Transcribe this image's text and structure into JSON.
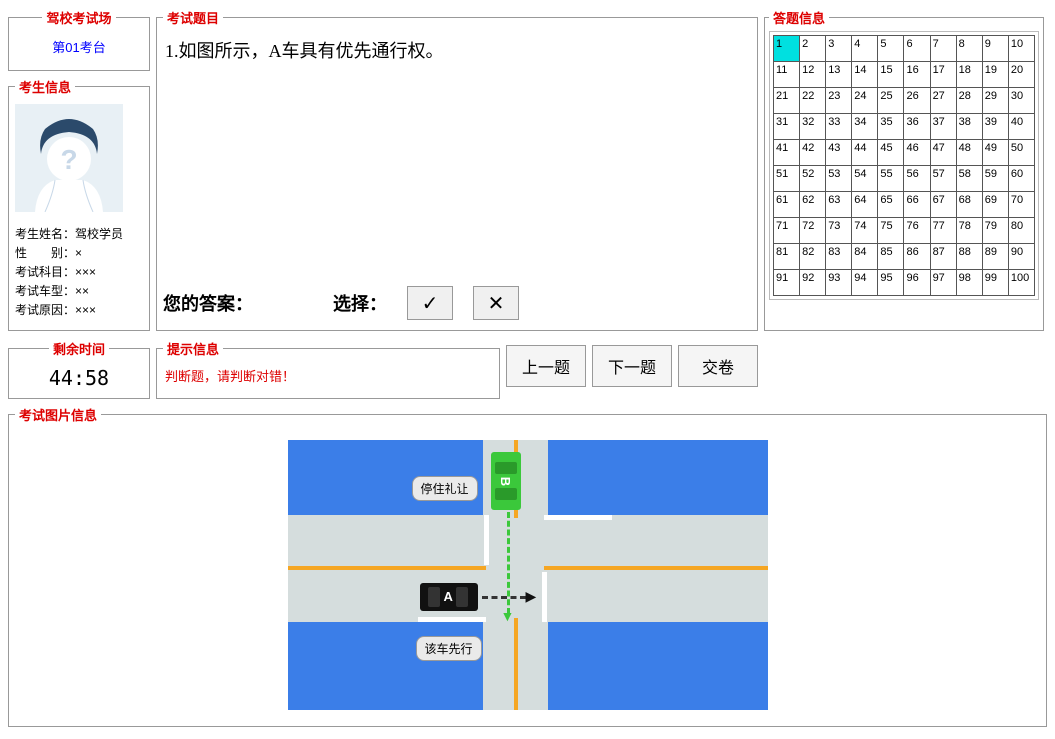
{
  "exam_room": {
    "legend": "驾校考试场",
    "label": "第01考台"
  },
  "student": {
    "legend": "考生信息",
    "name_label": "考生姓名：",
    "name": "驾校学员",
    "gender_label": "性　　别：",
    "gender": "×",
    "subject_label": "考试科目：",
    "subject": "×××",
    "car_type_label": "考试车型：",
    "car_type": "××",
    "reason_label": "考试原因：",
    "reason": "×××"
  },
  "question": {
    "legend": "考试题目",
    "text": "1.如图所示，A车具有优先通行权。",
    "your_answer": "您的答案：",
    "choice": "选择：",
    "check_symbol": "✓",
    "cross_symbol": "✕"
  },
  "answer_info": {
    "legend": "答题信息",
    "total": 100,
    "cols": 10,
    "current": 1
  },
  "remain": {
    "legend": "剩余时间",
    "time": "44:58"
  },
  "hint": {
    "legend": "提示信息",
    "text": "判断题，请判断对错！"
  },
  "nav": {
    "prev": "上一题",
    "next": "下一题",
    "submit": "交卷"
  },
  "image": {
    "legend": "考试图片信息",
    "callout_top": "停住礼让",
    "callout_bottom": "该车先行",
    "car_a_label": "A",
    "car_b_label": "B",
    "colors": {
      "block": "#3b7ee8",
      "road": "#d5dddd",
      "yellow_line": "#f5a623",
      "white_line": "#ffffff",
      "car_green": "#3bc83b",
      "car_black": "#111111",
      "callout_bg": "#eaeaea"
    }
  }
}
